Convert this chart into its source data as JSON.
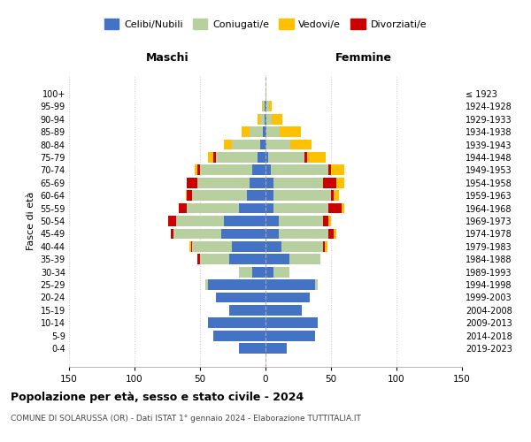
{
  "age_groups": [
    "0-4",
    "5-9",
    "10-14",
    "15-19",
    "20-24",
    "25-29",
    "30-34",
    "35-39",
    "40-44",
    "45-49",
    "50-54",
    "55-59",
    "60-64",
    "65-69",
    "70-74",
    "75-79",
    "80-84",
    "85-89",
    "90-94",
    "95-99",
    "100+"
  ],
  "birth_years": [
    "2019-2023",
    "2014-2018",
    "2009-2013",
    "2004-2008",
    "1999-2003",
    "1994-1998",
    "1989-1993",
    "1984-1988",
    "1979-1983",
    "1974-1978",
    "1969-1973",
    "1964-1968",
    "1959-1963",
    "1954-1958",
    "1949-1953",
    "1944-1948",
    "1939-1943",
    "1934-1938",
    "1929-1933",
    "1924-1928",
    "≤ 1923"
  ],
  "colors": {
    "celibi": "#4472c4",
    "coniugati": "#b8cfa0",
    "vedovi": "#ffc000",
    "divorziati": "#cc0000"
  },
  "male": {
    "celibi": [
      20,
      40,
      44,
      28,
      38,
      44,
      10,
      28,
      26,
      34,
      32,
      20,
      14,
      12,
      10,
      6,
      4,
      2,
      1,
      1,
      0
    ],
    "coniugati": [
      0,
      0,
      0,
      0,
      0,
      2,
      10,
      22,
      30,
      36,
      36,
      40,
      42,
      40,
      40,
      32,
      22,
      10,
      3,
      1,
      0
    ],
    "vedovi": [
      0,
      0,
      0,
      0,
      0,
      0,
      0,
      0,
      1,
      0,
      0,
      0,
      1,
      0,
      2,
      4,
      6,
      6,
      2,
      1,
      0
    ],
    "divorziati": [
      0,
      0,
      0,
      0,
      0,
      0,
      0,
      2,
      1,
      2,
      6,
      6,
      4,
      8,
      2,
      2,
      0,
      0,
      0,
      0,
      0
    ]
  },
  "female": {
    "nubili": [
      16,
      38,
      40,
      28,
      34,
      38,
      6,
      18,
      12,
      10,
      10,
      6,
      6,
      6,
      4,
      2,
      1,
      1,
      1,
      1,
      0
    ],
    "coniugati": [
      0,
      0,
      0,
      0,
      0,
      2,
      12,
      24,
      32,
      38,
      34,
      42,
      44,
      38,
      44,
      28,
      18,
      10,
      4,
      2,
      0
    ],
    "vedovi": [
      0,
      0,
      0,
      0,
      0,
      0,
      0,
      0,
      2,
      2,
      2,
      2,
      4,
      6,
      10,
      14,
      16,
      16,
      8,
      2,
      1
    ],
    "divorziati": [
      0,
      0,
      0,
      0,
      0,
      0,
      0,
      0,
      1,
      4,
      4,
      10,
      2,
      10,
      2,
      2,
      0,
      0,
      0,
      0,
      0
    ]
  },
  "xlim": 150,
  "title": "Popolazione per età, sesso e stato civile - 2024",
  "subtitle": "COMUNE DI SOLARUSSA (OR) - Dati ISTAT 1° gennaio 2024 - Elaborazione TUTTITALIA.IT",
  "ylabel_left": "Fasce di età",
  "label_maschi": "Maschi",
  "label_femmine": "Femmine",
  "legend_labels": [
    "Celibi/Nubili",
    "Coniugati/e",
    "Vedovi/e",
    "Divorziati/e"
  ],
  "bg_color": "#ffffff"
}
